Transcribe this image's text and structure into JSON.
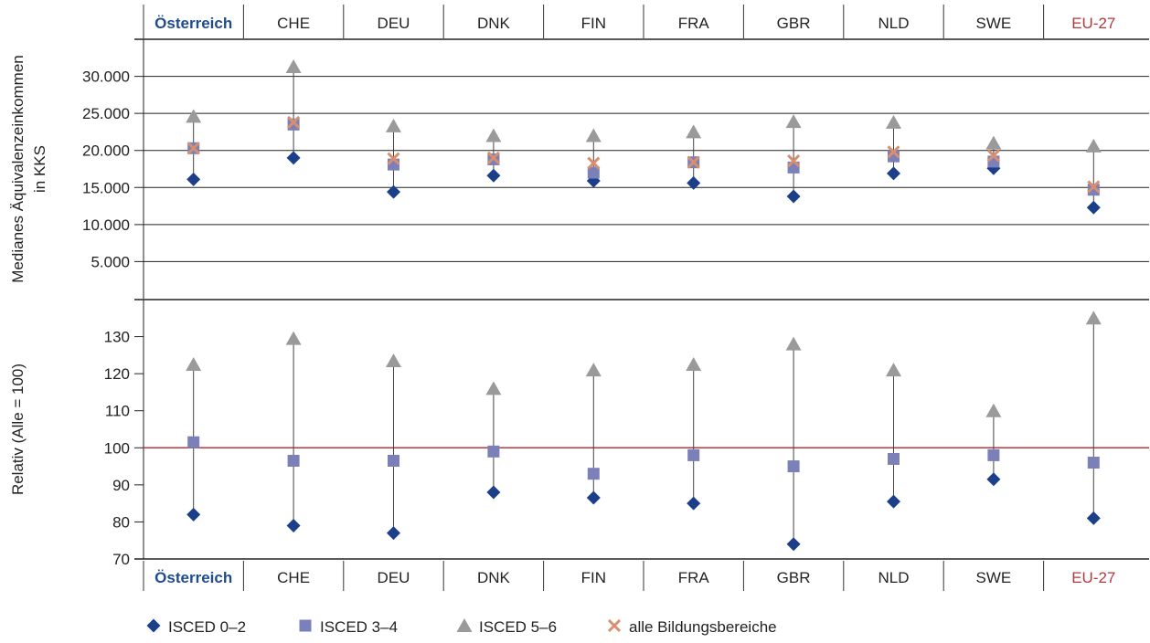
{
  "chart_data": {
    "type": "scatter",
    "categories": [
      "Österreich",
      "CHE",
      "DEU",
      "DNK",
      "FIN",
      "FRA",
      "GBR",
      "NLD",
      "SWE",
      "EU-27"
    ],
    "category_colors": [
      "#1f4b8f",
      "#222222",
      "#222222",
      "#222222",
      "#222222",
      "#222222",
      "#222222",
      "#222222",
      "#222222",
      "#b23a3a"
    ],
    "category_bold": [
      true,
      false,
      false,
      false,
      false,
      false,
      false,
      false,
      false,
      false
    ],
    "panels": [
      {
        "ylabel_lines": [
          "Medianes Äquivalenzeinkommen",
          "in KKS"
        ],
        "ylim": [
          0,
          35000
        ],
        "yticks": [
          5000,
          10000,
          15000,
          20000,
          25000,
          30000
        ],
        "ytick_labels": [
          "5.000",
          "10.000",
          "15.000",
          "20.000",
          "25.000",
          "30.000"
        ],
        "grid": true,
        "series": [
          {
            "name": "ISCED 0–2",
            "marker": "diamond",
            "color": "#1c3f8a",
            "values": [
              16100,
              19000,
              14400,
              16600,
              15900,
              15600,
              13800,
              16900,
              17600,
              12300
            ]
          },
          {
            "name": "ISCED 3–4",
            "marker": "square",
            "color": "#7b80b8",
            "values": [
              20300,
              23500,
              18100,
              18800,
              17000,
              18400,
              17700,
              19200,
              18500,
              14700
            ]
          },
          {
            "name": "ISCED 5–6",
            "marker": "triangle",
            "color": "#9a9a9a",
            "values": [
              24600,
              31300,
              23300,
              22000,
              22000,
              22500,
              23900,
              23800,
              21000,
              20600
            ]
          },
          {
            "name": "alle Bildungsbereiche",
            "marker": "x",
            "color": "#d98f6e",
            "values": [
              20300,
              23800,
              18900,
              19000,
              18300,
              18400,
              18600,
              19800,
              19300,
              15100
            ]
          }
        ]
      },
      {
        "ylabel_lines": [
          "Relativ (Alle = 100)"
        ],
        "ylim": [
          70,
          140
        ],
        "yticks": [
          70,
          80,
          90,
          100,
          110,
          120,
          130
        ],
        "ytick_labels": [
          "70",
          "80",
          "90",
          "100",
          "110",
          "120",
          "130"
        ],
        "grid": false,
        "reference_line": {
          "value": 100,
          "color": "#b8383c"
        },
        "series": [
          {
            "name": "ISCED 0–2",
            "marker": "diamond",
            "color": "#1c3f8a",
            "values": [
              82,
              79,
              77,
              88,
              86.5,
              85,
              74,
              85.5,
              91.5,
              81
            ]
          },
          {
            "name": "ISCED 3–4",
            "marker": "square",
            "color": "#7b80b8",
            "values": [
              101.5,
              96.5,
              96.5,
              99,
              93,
              98,
              95,
              97,
              98,
              96
            ]
          },
          {
            "name": "ISCED 5–6",
            "marker": "triangle",
            "color": "#9a9a9a",
            "values": [
              122.5,
              129.5,
              123.5,
              116,
              121,
              122.5,
              128,
              121,
              110,
              135
            ]
          }
        ]
      }
    ],
    "legend": {
      "placement": "bottom-left",
      "items": [
        {
          "label": "ISCED 0–2",
          "marker": "diamond",
          "color": "#1c3f8a"
        },
        {
          "label": "ISCED 3–4",
          "marker": "square",
          "color": "#7b80b8"
        },
        {
          "label": "ISCED 5–6",
          "marker": "triangle",
          "color": "#9a9a9a"
        },
        {
          "label": "alle Bildungsbereiche",
          "marker": "x",
          "color": "#d98f6e"
        }
      ]
    }
  }
}
